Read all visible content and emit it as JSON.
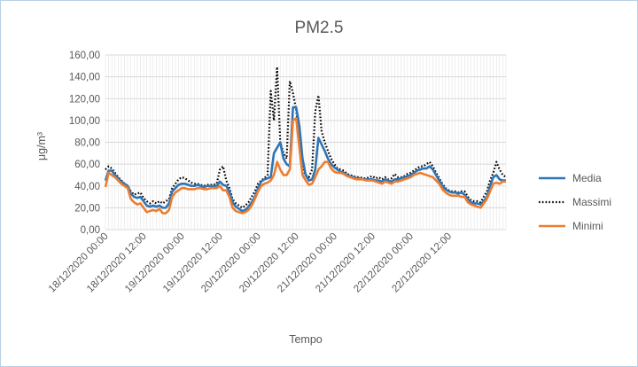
{
  "chart_data": {
    "type": "line",
    "title": "PM2.5",
    "xlabel": "Tempo",
    "ylabel": "μg/m³",
    "ylim": [
      0,
      160
    ],
    "y_ticks": [
      "0,00",
      "20,00",
      "40,00",
      "60,00",
      "80,00",
      "100,00",
      "120,00",
      "140,00",
      "160,00"
    ],
    "x_ticks": [
      "18/12/2020 00:00",
      "18/12/2020 12:00",
      "19/12/2020 00:00",
      "19/12/2020 12:00",
      "20/12/2020 00:00",
      "20/12/2020 12:00",
      "21/12/2020 00:00",
      "21/12/2020 12:00",
      "22/12/2020 00:00",
      "22/12/2020 12:00"
    ],
    "x_start": "17/12/2020 23:00",
    "x_step_hours": 1,
    "grid": true,
    "legend_position": "right",
    "series": [
      {
        "name": "Media",
        "color": "#2e75b6",
        "style": "solid",
        "values": [
          45,
          54,
          54,
          50,
          47,
          44,
          42,
          40,
          33,
          30,
          29,
          30,
          26,
          22,
          21,
          22,
          21,
          22,
          20,
          20,
          24,
          35,
          38,
          41,
          42,
          42,
          41,
          40,
          40,
          41,
          40,
          39,
          40,
          40,
          40,
          40,
          44,
          41,
          40,
          35,
          25,
          21,
          19,
          17,
          18,
          21,
          25,
          30,
          38,
          44,
          46,
          47,
          48,
          70,
          75,
          80,
          65,
          60,
          58,
          112,
          112,
          95,
          65,
          50,
          45,
          46,
          55,
          84,
          78,
          72,
          65,
          60,
          57,
          55,
          53,
          52,
          50,
          49,
          48,
          47,
          47,
          46,
          46,
          46,
          46,
          45,
          45,
          44,
          46,
          45,
          44,
          46,
          46,
          47,
          48,
          49,
          50,
          52,
          54,
          55,
          56,
          56,
          58,
          55,
          50,
          45,
          40,
          37,
          35,
          34,
          34,
          33,
          34,
          32,
          28,
          25,
          24,
          24,
          23,
          26,
          30,
          40,
          48,
          50,
          46,
          45,
          45
        ]
      },
      {
        "name": "Massimi",
        "color": "#000000",
        "style": "dotted",
        "values": [
          55,
          58,
          56,
          52,
          48,
          45,
          42,
          40,
          35,
          32,
          33,
          34,
          29,
          26,
          24,
          26,
          24,
          26,
          24,
          26,
          28,
          38,
          42,
          46,
          48,
          47,
          45,
          43,
          42,
          42,
          41,
          40,
          41,
          41,
          41,
          42,
          55,
          58,
          45,
          38,
          28,
          24,
          22,
          20,
          22,
          25,
          30,
          35,
          42,
          45,
          47,
          50,
          127,
          100,
          149,
          80,
          70,
          65,
          136,
          125,
          110,
          80,
          55,
          50,
          48,
          55,
          108,
          123,
          90,
          80,
          72,
          65,
          60,
          56,
          55,
          54,
          51,
          50,
          49,
          48,
          48,
          47,
          47,
          48,
          49,
          47,
          48,
          46,
          48,
          46,
          47,
          51,
          48,
          48,
          49,
          51,
          52,
          54,
          56,
          58,
          58,
          60,
          62,
          58,
          52,
          47,
          42,
          38,
          36,
          35,
          35,
          34,
          35,
          35,
          30,
          27,
          26,
          26,
          25,
          30,
          35,
          45,
          52,
          62,
          55,
          50,
          48
        ]
      },
      {
        "name": "Minimi",
        "color": "#ed7d31",
        "style": "solid",
        "values": [
          39,
          52,
          50,
          48,
          45,
          42,
          40,
          38,
          28,
          25,
          23,
          24,
          20,
          16,
          17,
          18,
          17,
          19,
          15,
          15,
          18,
          30,
          34,
          36,
          38,
          38,
          37,
          37,
          37,
          38,
          38,
          37,
          37,
          38,
          38,
          38,
          40,
          36,
          36,
          30,
          20,
          17,
          16,
          15,
          16,
          18,
          22,
          28,
          35,
          40,
          42,
          43,
          45,
          50,
          62,
          55,
          50,
          50,
          55,
          100,
          102,
          75,
          50,
          45,
          41,
          42,
          48,
          55,
          58,
          62,
          62,
          56,
          53,
          52,
          52,
          51,
          49,
          48,
          47,
          46,
          46,
          46,
          45,
          45,
          45,
          44,
          43,
          42,
          44,
          43,
          42,
          44,
          44,
          45,
          46,
          47,
          48,
          50,
          51,
          52,
          51,
          50,
          49,
          48,
          45,
          42,
          37,
          34,
          32,
          31,
          31,
          31,
          30,
          30,
          25,
          23,
          22,
          21,
          20,
          24,
          28,
          35,
          42,
          43,
          42,
          44,
          44
        ]
      }
    ]
  }
}
